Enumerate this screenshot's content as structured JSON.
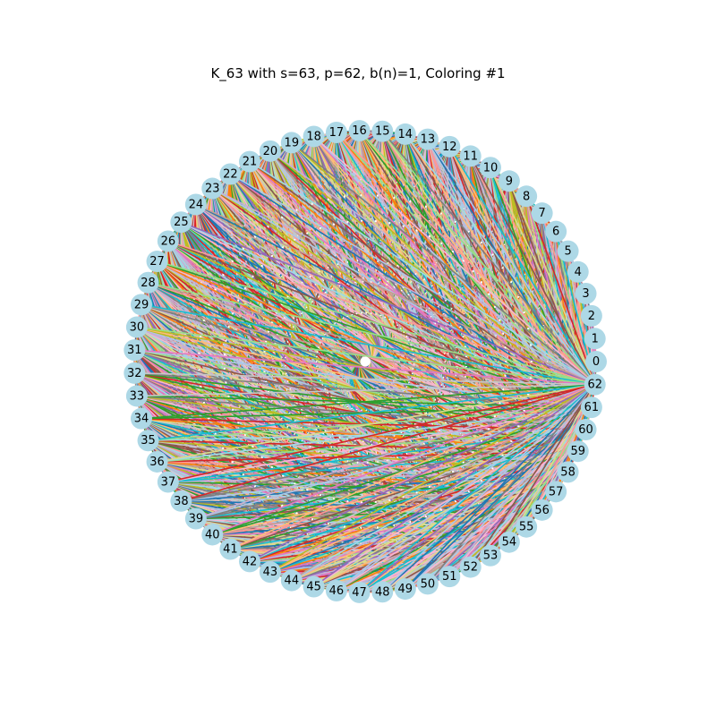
{
  "figure": {
    "title": "K_63 with s=63, p=62, b(n)=1, Coloring #1"
  },
  "graph": {
    "type": "complete-graph",
    "node_count": 63,
    "labels": [
      "0",
      "1",
      "2",
      "3",
      "4",
      "5",
      "6",
      "7",
      "8",
      "9",
      "10",
      "11",
      "12",
      "13",
      "14",
      "15",
      "16",
      "17",
      "18",
      "19",
      "20",
      "21",
      "22",
      "23",
      "24",
      "25",
      "26",
      "27",
      "28",
      "29",
      "30",
      "31",
      "32",
      "33",
      "34",
      "35",
      "36",
      "37",
      "38",
      "39",
      "40",
      "41",
      "42",
      "43",
      "44",
      "45",
      "46",
      "47",
      "48",
      "49",
      "50",
      "51",
      "52",
      "53",
      "54",
      "55",
      "56",
      "57",
      "58",
      "59",
      "60",
      "61",
      "62"
    ],
    "node_color": "#add8e6",
    "edge_palette": [
      "#1f77b4",
      "#ff7f0e",
      "#2ca02c",
      "#d62728",
      "#9467bd",
      "#8c564b",
      "#e377c2",
      "#7f7f7f",
      "#bcbd22",
      "#17becf",
      "#aec7e8",
      "#ffbb78",
      "#98df8a",
      "#ff9896",
      "#c5b0d5",
      "#c49c94",
      "#f7b6d2",
      "#c7c7c7",
      "#dbdb8d",
      "#9edae5"
    ],
    "center_marker_color": "#ffffff"
  }
}
